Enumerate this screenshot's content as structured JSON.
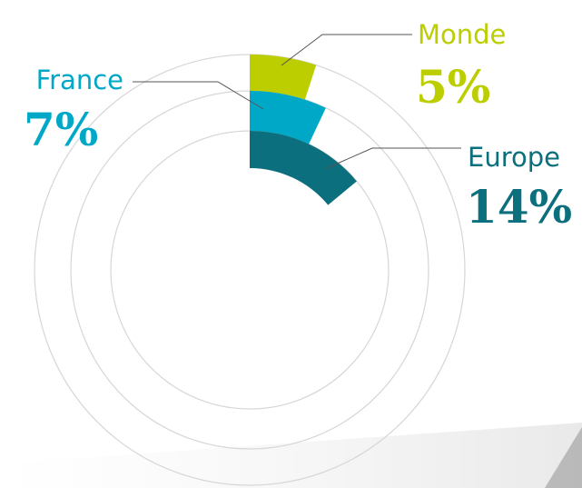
{
  "chart_data": {
    "type": "radial_bar",
    "categories": [
      "Monde",
      "France",
      "Europe"
    ],
    "values": [
      5,
      7,
      14
    ],
    "value_labels": [
      "5%",
      "7%",
      "14%"
    ],
    "colors": [
      "#bccd00",
      "#00a8c8",
      "#0b6f7d"
    ],
    "ylim": [
      0,
      100
    ]
  }
}
